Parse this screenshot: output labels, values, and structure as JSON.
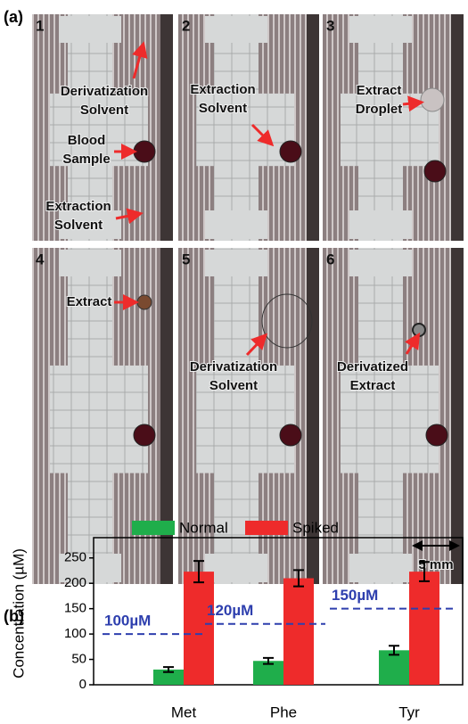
{
  "panel_a": {
    "label": "(a)",
    "photos": [
      {
        "number": "1",
        "annotations": [
          [
            "Derivatization",
            "Solvent"
          ],
          [
            "Blood",
            "Sample"
          ],
          [
            "Extraction",
            "Solvent"
          ]
        ]
      },
      {
        "number": "2",
        "annotations": [
          [
            "Extraction",
            "Solvent"
          ]
        ]
      },
      {
        "number": "3",
        "annotations": [
          [
            "Extract",
            "Droplet"
          ]
        ]
      },
      {
        "number": "4",
        "annotations": [
          [
            "Extract"
          ]
        ]
      },
      {
        "number": "5",
        "annotations": [
          [
            "Derivatization",
            "Solvent"
          ]
        ]
      },
      {
        "number": "6",
        "annotations": [
          [
            "Derivatized",
            "Extract"
          ]
        ]
      }
    ],
    "scale_bar": "5 mm"
  },
  "chart_data": {
    "type": "bar",
    "panel_label": "(b)",
    "y_label": "Concentration (µM)",
    "categories": [
      "Met",
      "Phe",
      "Tyr"
    ],
    "series": [
      {
        "name": "Normal",
        "color": "#1fae4b",
        "values": [
          30,
          47,
          68
        ],
        "errors": [
          5,
          6,
          9
        ]
      },
      {
        "name": "Spiked",
        "color": "#ee2b2b",
        "values": [
          223,
          210,
          223
        ],
        "errors": [
          21,
          16,
          19
        ]
      }
    ],
    "reference_lines": [
      {
        "value": 100,
        "label": "100µM"
      },
      {
        "value": 120,
        "label": "120µM"
      },
      {
        "value": 150,
        "label": "150µM"
      }
    ],
    "ylim": [
      0,
      290
    ],
    "yticks": [
      0,
      50,
      100,
      150,
      200,
      250
    ]
  }
}
